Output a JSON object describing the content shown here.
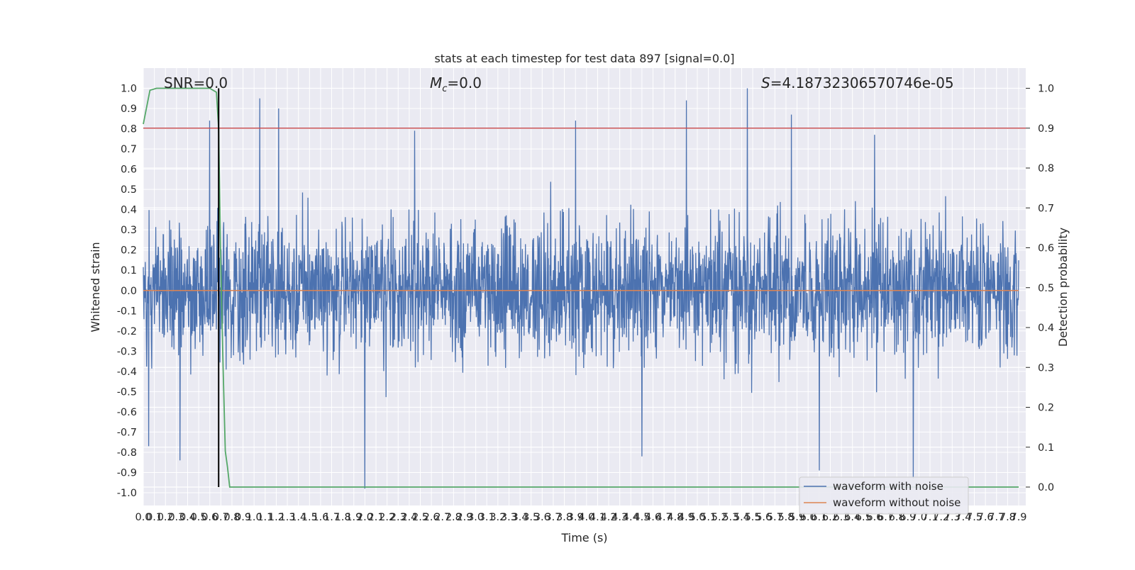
{
  "chart_data": {
    "type": "line",
    "title": "stats at each timestep for test data 897 [signal=0.0]",
    "xlabel": "Time (s)",
    "ylabel": "Whitened strain",
    "y2label": "Detection probability",
    "annotations": {
      "snr": "SNR=0.0",
      "mc_symbol": "M",
      "mc_sub": "c",
      "mc_value": "=0.0",
      "s_symbol": "S",
      "s_value": "=4.18732306570746e-05"
    },
    "xlim": [
      0.0,
      7.9
    ],
    "ylim": [
      -1.0,
      1.0
    ],
    "y2lim": [
      0.0,
      1.0
    ],
    "xticks": [
      "0.0",
      "0.1",
      "0.2",
      "0.3",
      "0.4",
      "0.5",
      "0.6",
      "0.7",
      "0.8",
      "0.9",
      "1.0",
      "1.1",
      "1.2",
      "1.3",
      "1.4",
      "1.5",
      "1.6",
      "1.7",
      "1.8",
      "1.9",
      "2.0",
      "2.1",
      "2.2",
      "2.3",
      "2.4",
      "2.5",
      "2.6",
      "2.7",
      "2.8",
      "2.9",
      "3.0",
      "3.1",
      "3.2",
      "3.3",
      "3.4",
      "3.5",
      "3.6",
      "3.7",
      "3.8",
      "3.9",
      "4.0",
      "4.1",
      "4.2",
      "4.3",
      "4.4",
      "4.5",
      "4.6",
      "4.7",
      "4.8",
      "4.9",
      "5.0",
      "5.1",
      "5.2",
      "5.3",
      "5.4",
      "5.5",
      "5.6",
      "5.7",
      "5.8",
      "5.9",
      "6.0",
      "6.1",
      "6.2",
      "6.3",
      "6.4",
      "6.5",
      "6.6",
      "6.7",
      "6.8",
      "6.9",
      "7.0",
      "7.1",
      "7.2",
      "7.3",
      "7.4",
      "7.5",
      "7.6",
      "7.7",
      "7.8",
      "7.9"
    ],
    "yticks": [
      "-1.0",
      "-0.9",
      "-0.8",
      "-0.7",
      "-0.6",
      "-0.5",
      "-0.4",
      "-0.3",
      "-0.2",
      "-0.1",
      "0.0",
      "0.1",
      "0.2",
      "0.3",
      "0.4",
      "0.5",
      "0.6",
      "0.7",
      "0.8",
      "0.9",
      "1.0"
    ],
    "y2ticks": [
      "0.0",
      "0.1",
      "0.2",
      "0.3",
      "0.4",
      "0.5",
      "0.6",
      "0.7",
      "0.8",
      "0.9",
      "1.0"
    ],
    "grid": true,
    "legend_position": "lower-right",
    "series": [
      {
        "name": "waveform with noise",
        "color": "#4c72b0",
        "axis": "left",
        "description": "dense white-noise strain, amplitude mostly within -0.6..0.6",
        "peaks": [
          {
            "x": 0.6,
            "y": 0.84
          },
          {
            "x": 1.05,
            "y": 0.95
          },
          {
            "x": 1.22,
            "y": 0.9
          },
          {
            "x": 2.45,
            "y": 0.79
          },
          {
            "x": 3.9,
            "y": 0.84
          },
          {
            "x": 4.9,
            "y": 0.94
          },
          {
            "x": 5.45,
            "y": 1.0
          },
          {
            "x": 5.85,
            "y": 0.87
          },
          {
            "x": 6.6,
            "y": 0.77
          }
        ],
        "troughs": [
          {
            "x": 0.05,
            "y": -0.77
          },
          {
            "x": 0.33,
            "y": -0.84
          },
          {
            "x": 2.0,
            "y": -0.98
          },
          {
            "x": 4.5,
            "y": -0.82
          },
          {
            "x": 6.1,
            "y": -0.89
          },
          {
            "x": 6.95,
            "y": -0.93
          }
        ]
      },
      {
        "name": "waveform without noise",
        "color": "#dd8452",
        "axis": "left",
        "x": [
          0.0,
          7.9
        ],
        "y": [
          0.0,
          0.0
        ]
      },
      {
        "name": "",
        "color": "#55a868",
        "axis": "right",
        "x": [
          0.0,
          0.06,
          0.12,
          0.2,
          0.4,
          0.6,
          0.66,
          0.68,
          0.7,
          0.72,
          0.74,
          0.76,
          0.78,
          7.9
        ],
        "y": [
          0.91,
          0.995,
          1.0,
          1.0,
          1.0,
          1.0,
          0.99,
          0.9,
          0.55,
          0.3,
          0.09,
          0.05,
          0.0,
          0.0
        ]
      }
    ],
    "threshold": {
      "color": "#c44e52",
      "axis": "right",
      "y": 0.9
    },
    "marker_line": {
      "color": "#000000",
      "x": 0.68,
      "y_range": [
        0.0,
        1.0
      ]
    }
  }
}
